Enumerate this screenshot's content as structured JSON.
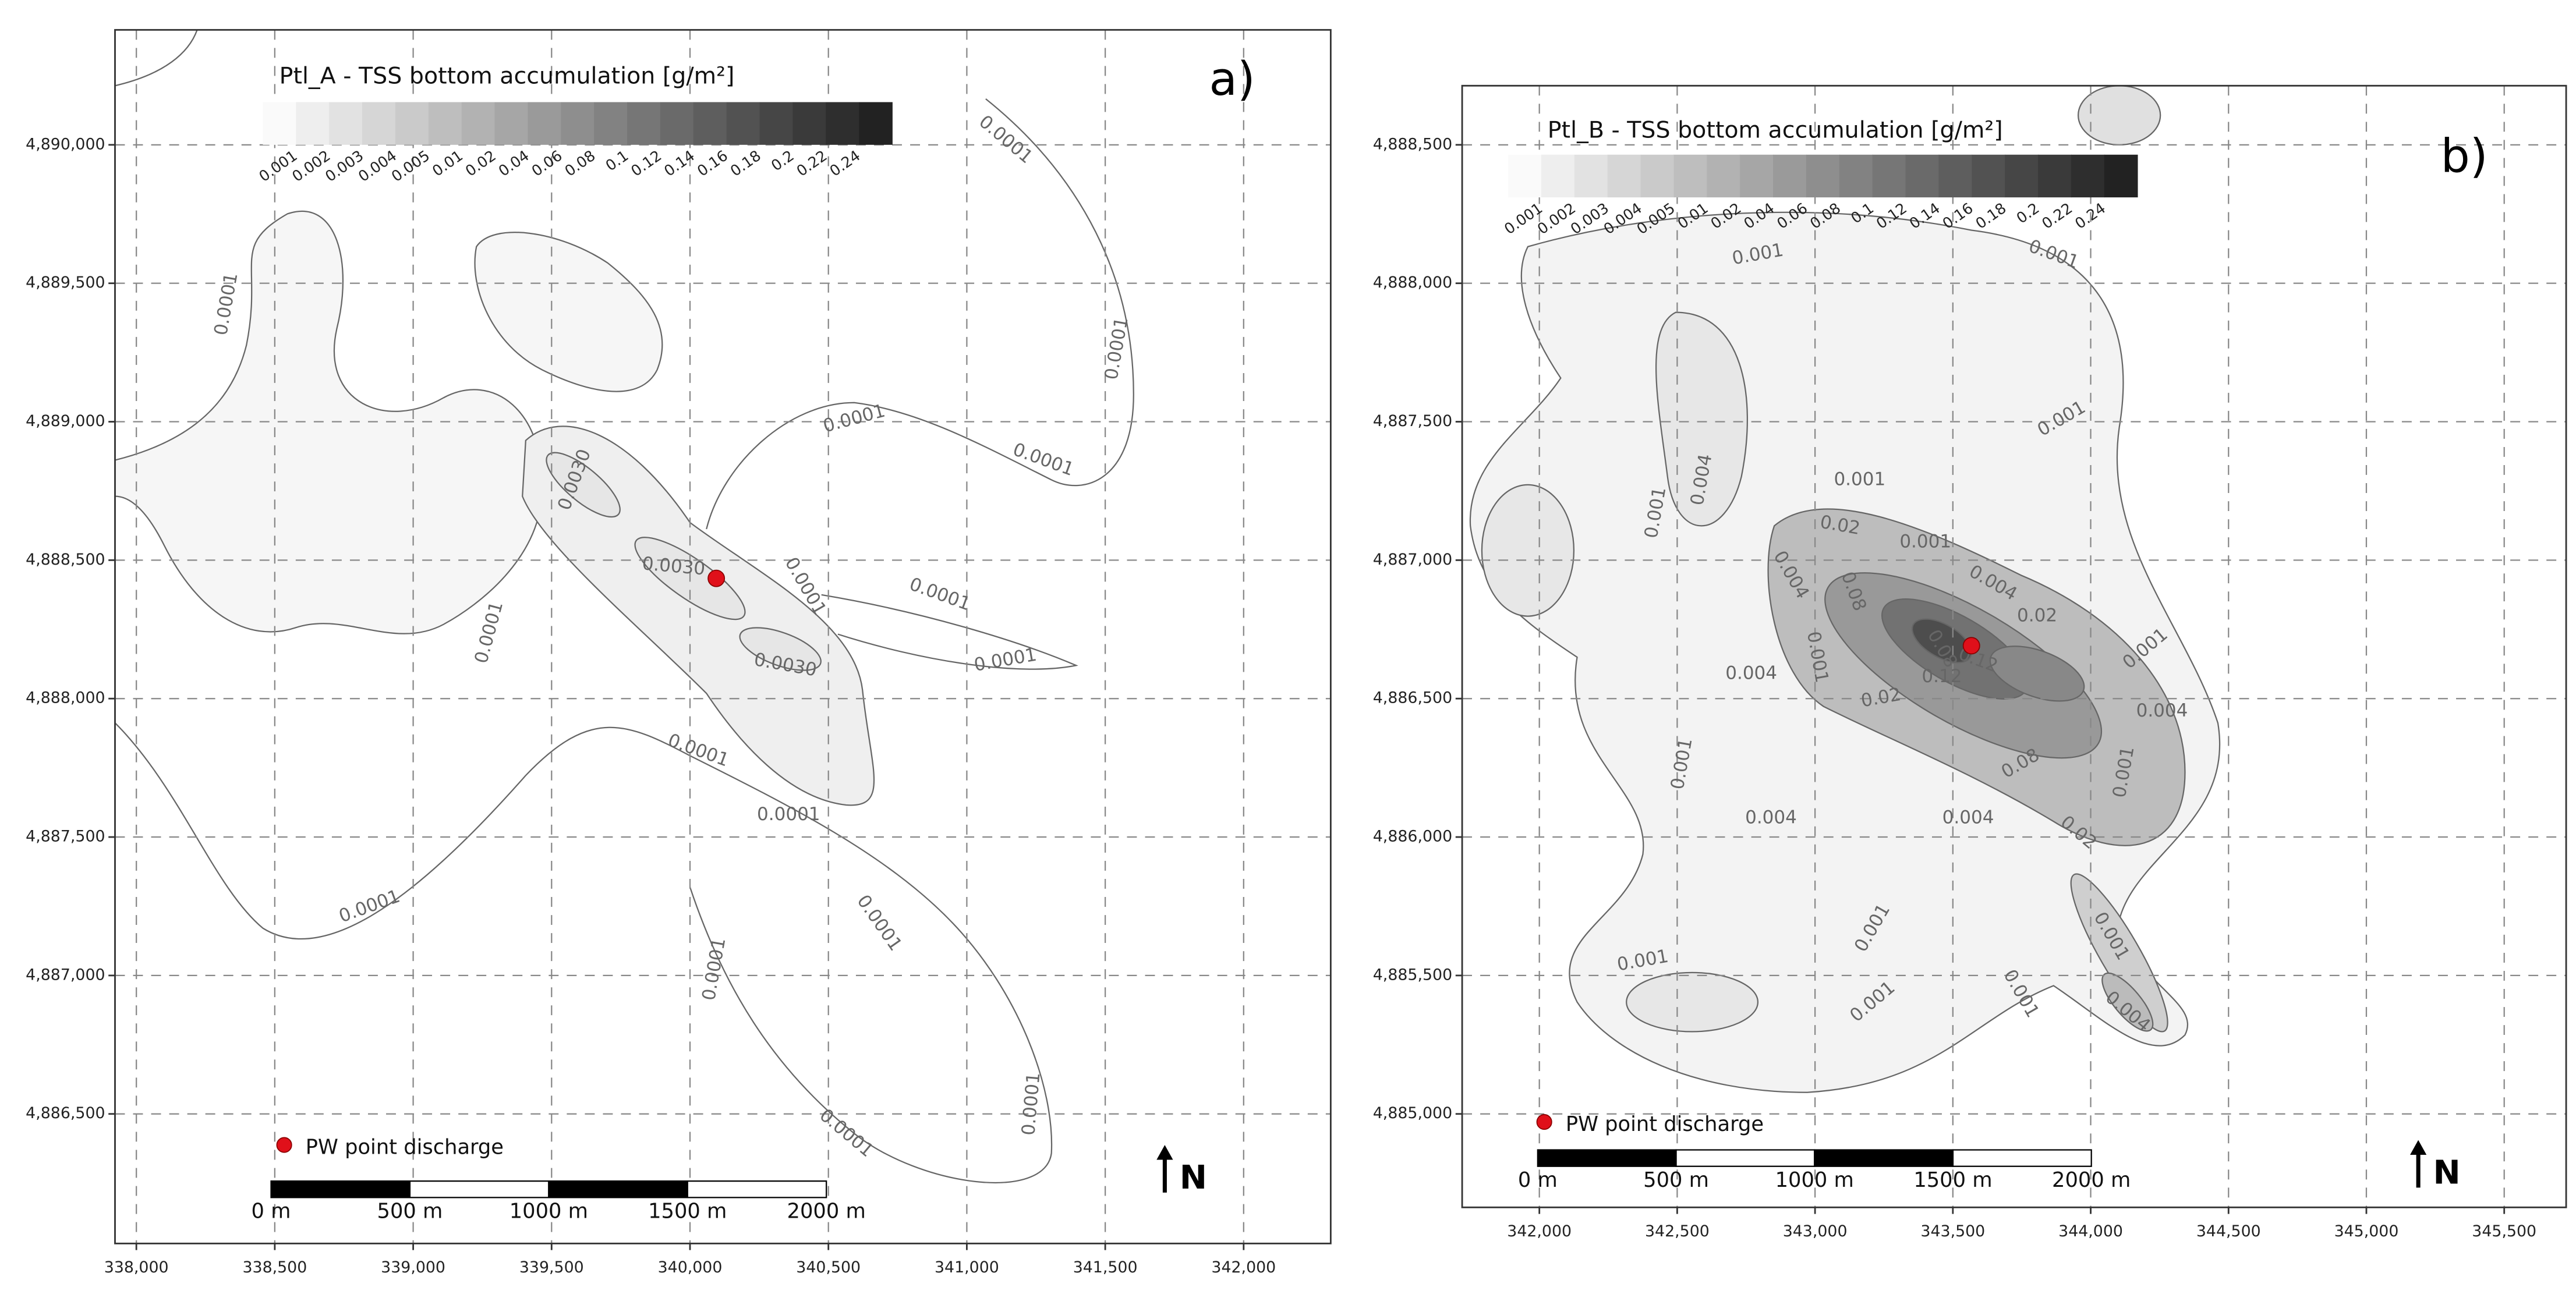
{
  "panels": [
    {
      "label": "a)",
      "title": "Ptl_A - TSS bottom accumulation [g/m²]",
      "colorbar": [
        "0.001",
        "0.002",
        "0.003",
        "0.004",
        "0.005",
        "0.01",
        "0.02",
        "0.04",
        "0.06",
        "0.08",
        "0.1",
        "0.12",
        "0.14",
        "0.16",
        "0.18",
        "0.2",
        "0.22",
        "0.24"
      ],
      "x_ticks": [
        "338,000",
        "338,500",
        "339,000",
        "339,500",
        "340,000",
        "340,500",
        "341,000",
        "341,500",
        "342,000"
      ],
      "y_ticks": [
        "4,890,000",
        "4,889,500",
        "4,889,000",
        "4,888,500",
        "4,888,000",
        "4,887,500",
        "4,887,000",
        "4,886,500"
      ],
      "contour_labels": [
        "0.0001",
        "0.0001",
        "0.0001",
        "0.0001",
        "0.0001",
        "0.0001",
        "0.0001",
        "0.0001",
        "0.0001",
        "0.0001",
        "0.0001",
        "0.0001",
        "0.0001",
        "0.0001",
        "0.0001",
        "0.0030",
        "0.0030",
        "0.0030",
        "0.0001"
      ],
      "legend": "PW point discharge",
      "scale_labels": [
        "0 m",
        "500 m",
        "1000 m",
        "1500 m",
        "2000 m"
      ],
      "north": "N"
    },
    {
      "label": "b)",
      "title": "Ptl_B - TSS bottom accumulation [g/m²]",
      "colorbar": [
        "0.001",
        "0.002",
        "0.003",
        "0.004",
        "0.005",
        "0.01",
        "0.02",
        "0.04",
        "0.06",
        "0.08",
        "0.1",
        "0.12",
        "0.14",
        "0.16",
        "0.18",
        "0.2",
        "0.22",
        "0.24"
      ],
      "x_ticks": [
        "342,000",
        "342,500",
        "343,000",
        "343,500",
        "344,000",
        "344,500",
        "345,000",
        "345,500"
      ],
      "y_ticks": [
        "4,888,500",
        "4,888,000",
        "4,887,500",
        "4,887,000",
        "4,886,500",
        "4,886,000",
        "4,885,500",
        "4,885,000"
      ],
      "contour_labels": [
        "0.001",
        "0.001",
        "0.001",
        "0.001",
        "0.001",
        "0.004",
        "0.02",
        "0.001",
        "0.004",
        "0.08",
        "0.004",
        "0.02",
        "0.001",
        "0.08",
        "0.12",
        "0.12",
        "0.004",
        "0.001",
        "0.02",
        "0.004",
        "0.08",
        "0.001",
        "0.004",
        "0.004",
        "0.001",
        "0.02",
        "0.001",
        "0.001",
        "0.001",
        "0.001",
        "0.004",
        "0.001"
      ],
      "legend": "PW point discharge",
      "scale_labels": [
        "0 m",
        "500 m",
        "1000 m",
        "1500 m",
        "2000 m"
      ],
      "north": "N"
    }
  ]
}
